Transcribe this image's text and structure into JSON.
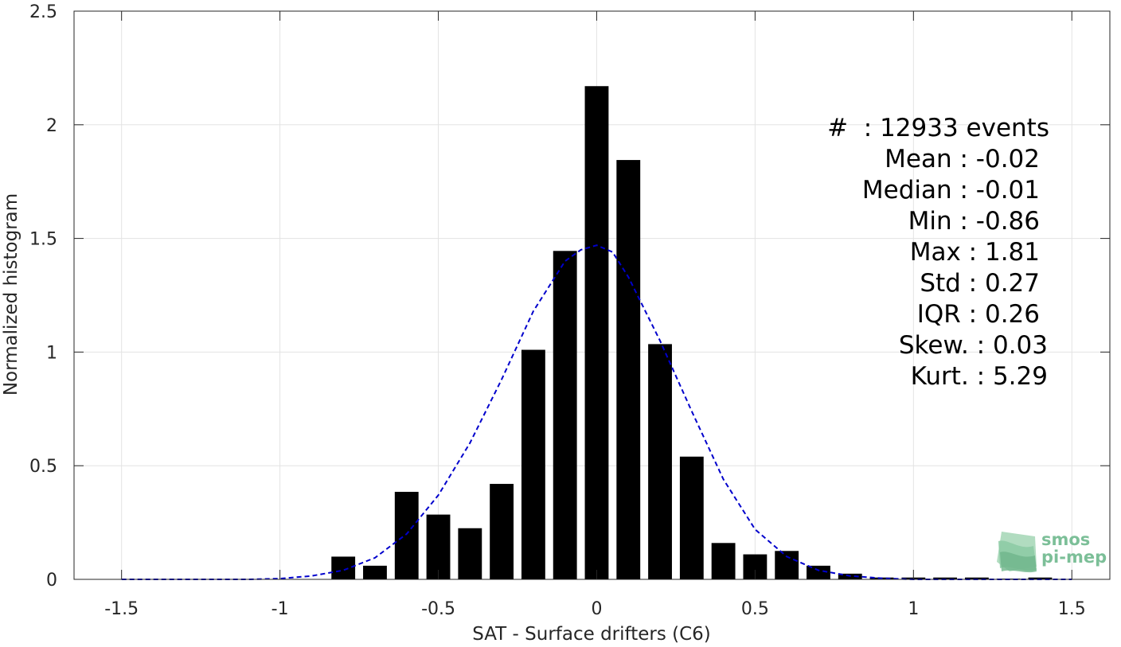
{
  "chart_data": {
    "type": "bar",
    "xlabel": "SAT - Surface drifters (C6)",
    "ylabel": "Normalized histogram",
    "xlim": [
      -1.65,
      1.62
    ],
    "ylim": [
      0,
      2.5
    ],
    "grid": true,
    "xticks": [
      -1.5,
      -1,
      -0.5,
      0,
      0.5,
      1,
      1.5
    ],
    "xtick_labels": [
      "-1.5",
      "-1",
      "-0.5",
      "0",
      "0.5",
      "1",
      "1.5"
    ],
    "yticks": [
      0,
      0.5,
      1,
      1.5,
      2,
      2.5
    ],
    "ytick_labels": [
      "0",
      "0.5",
      "1",
      "1.5",
      "2",
      "2.5"
    ],
    "bar_width": 0.075,
    "bar_color": "#000000",
    "bars": {
      "x": [
        -0.8,
        -0.7,
        -0.6,
        -0.5,
        -0.4,
        -0.3,
        -0.2,
        -0.1,
        0.0,
        0.1,
        0.2,
        0.3,
        0.4,
        0.5,
        0.6,
        0.7,
        0.8,
        0.9,
        1.0,
        1.1,
        1.2,
        1.3,
        1.4
      ],
      "values": [
        0.1,
        0.06,
        0.385,
        0.285,
        0.225,
        0.42,
        1.01,
        1.445,
        2.17,
        1.845,
        1.035,
        0.54,
        0.16,
        0.11,
        0.125,
        0.06,
        0.025,
        0.008,
        0.008,
        0.008,
        0.008,
        0.003,
        0.008
      ]
    },
    "fit_curve": {
      "style": "dashed",
      "color": "#0000cc",
      "x": [
        -1.5,
        -1.4,
        -1.3,
        -1.2,
        -1.1,
        -1.0,
        -0.9,
        -0.8,
        -0.7,
        -0.6,
        -0.5,
        -0.4,
        -0.3,
        -0.2,
        -0.1,
        -0.05,
        0.0,
        0.05,
        0.1,
        0.2,
        0.3,
        0.4,
        0.5,
        0.6,
        0.7,
        0.8,
        0.9,
        1.0,
        1.1,
        1.2,
        1.3,
        1.4,
        1.5
      ],
      "y": [
        0.0,
        0.0,
        0.0,
        0.0,
        0.0,
        0.003,
        0.015,
        0.04,
        0.095,
        0.2,
        0.37,
        0.6,
        0.88,
        1.18,
        1.4,
        1.45,
        1.47,
        1.44,
        1.33,
        1.05,
        0.74,
        0.44,
        0.22,
        0.1,
        0.04,
        0.015,
        0.005,
        0.0,
        0.0,
        0.0,
        0.0,
        0.0,
        0.0
      ]
    },
    "annotation_lines": [
      "#  : 12933 events",
      "Mean : -0.02",
      "Median : -0.01",
      "Min : -0.86",
      "Max : 1.81",
      "Std : 0.27",
      "IQR : 0.26",
      "Skew. : 0.03",
      "Kurt. : 5.29"
    ]
  },
  "logo": {
    "line1": "smos",
    "line2": "pi-mep",
    "color": "#7cbf98"
  }
}
